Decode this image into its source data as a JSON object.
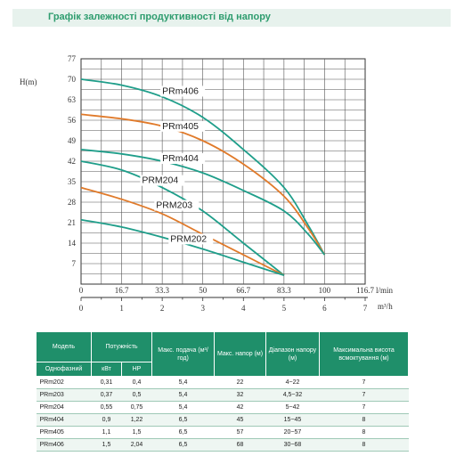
{
  "title": "Графік залежності продуктивності від напору",
  "chart_data": {
    "type": "line",
    "ylabel": "H(m)",
    "xlabel_top_unit": "l/min",
    "xlabel_bottom_unit": "m³/h",
    "y_ticks": [
      "77",
      "70",
      "63",
      "56",
      "49",
      "42",
      "35",
      "28",
      "21",
      "14",
      "7"
    ],
    "x_ticks_lmin": [
      "0",
      "16.7",
      "33.3",
      "50",
      "66.7",
      "83.3",
      "100",
      "116.7"
    ],
    "x_ticks_m3h": [
      "0",
      "1",
      "2",
      "3",
      "4",
      "5",
      "6",
      "7"
    ],
    "xlim": [
      0,
      7
    ],
    "ylim": [
      0,
      77
    ],
    "grid": true,
    "series": [
      {
        "name": "PRm406",
        "color": "#1f9e8a",
        "points": [
          [
            0,
            70
          ],
          [
            1,
            68
          ],
          [
            2,
            64
          ],
          [
            3,
            57
          ],
          [
            4,
            46
          ],
          [
            5,
            33
          ],
          [
            5.6,
            20
          ],
          [
            6,
            10
          ]
        ]
      },
      {
        "name": "PRm405",
        "color": "#e07a2a",
        "points": [
          [
            0,
            58
          ],
          [
            1,
            56.5
          ],
          [
            2,
            54
          ],
          [
            3,
            49
          ],
          [
            4,
            41
          ],
          [
            5,
            30
          ],
          [
            5.6,
            19
          ],
          [
            6,
            10
          ]
        ]
      },
      {
        "name": "PRm404",
        "color": "#1f9e8a",
        "points": [
          [
            0,
            46
          ],
          [
            1,
            44.5
          ],
          [
            2,
            42
          ],
          [
            3,
            38
          ],
          [
            4,
            32
          ],
          [
            5,
            25
          ],
          [
            5.6,
            17
          ],
          [
            6,
            10
          ]
        ]
      },
      {
        "name": "PRM204",
        "color": "#1f9e8a",
        "points": [
          [
            0,
            42
          ],
          [
            1,
            39
          ],
          [
            2,
            33
          ],
          [
            3,
            25
          ],
          [
            4,
            14
          ],
          [
            5,
            3
          ]
        ]
      },
      {
        "name": "PRM203",
        "color": "#e07a2a",
        "points": [
          [
            0,
            33
          ],
          [
            1,
            29
          ],
          [
            2,
            24
          ],
          [
            3,
            17
          ],
          [
            4,
            10
          ],
          [
            5,
            3
          ]
        ]
      },
      {
        "name": "PRM202",
        "color": "#1f9e8a",
        "points": [
          [
            0,
            22
          ],
          [
            1,
            19.5
          ],
          [
            2,
            16
          ],
          [
            3,
            12
          ],
          [
            4,
            7.5
          ],
          [
            5,
            3
          ]
        ]
      }
    ],
    "labels": [
      {
        "text": "PRm406",
        "x": 2,
        "y": 65
      },
      {
        "text": "PRm405",
        "x": 2,
        "y": 53
      },
      {
        "text": "PRm404",
        "x": 2,
        "y": 42
      },
      {
        "text": "PRM204",
        "x": 1.5,
        "y": 34.5
      },
      {
        "text": "PRM203",
        "x": 1.85,
        "y": 26
      },
      {
        "text": "PRM202",
        "x": 2.2,
        "y": 14.5
      }
    ]
  },
  "table": {
    "head": {
      "model": "Модель",
      "power": "Потужність",
      "max_flow": "Макс. подача (м³/год)",
      "max_head": "Макс. напор (м)",
      "range": "Діапазон напору (м)",
      "suction": "Максимальна висота всмоктування (м)",
      "single_phase": "Однофазний",
      "kw": "кВт",
      "hp": "HP"
    },
    "rows": [
      {
        "model": "PRm202",
        "kw": "0,31",
        "hp": "0,4",
        "flow": "5,4",
        "head": "22",
        "range": "4~22",
        "suction": "7"
      },
      {
        "model": "PRm203",
        "kw": "0,37",
        "hp": "0,5",
        "flow": "5,4",
        "head": "32",
        "range": "4,5~32",
        "suction": "7"
      },
      {
        "model": "PRm204",
        "kw": "0,55",
        "hp": "0,75",
        "flow": "5,4",
        "head": "42",
        "range": "5~42",
        "suction": "7"
      },
      {
        "model": "PRm404",
        "kw": "0,9",
        "hp": "1,22",
        "flow": "6,5",
        "head": "45",
        "range": "15~45",
        "suction": "8"
      },
      {
        "model": "PRm405",
        "kw": "1,1",
        "hp": "1,5",
        "flow": "6,5",
        "head": "57",
        "range": "20~57",
        "suction": "8"
      },
      {
        "model": "PRm406",
        "kw": "1,5",
        "hp": "2,04",
        "flow": "6,5",
        "head": "68",
        "range": "30~68",
        "suction": "8"
      }
    ]
  }
}
